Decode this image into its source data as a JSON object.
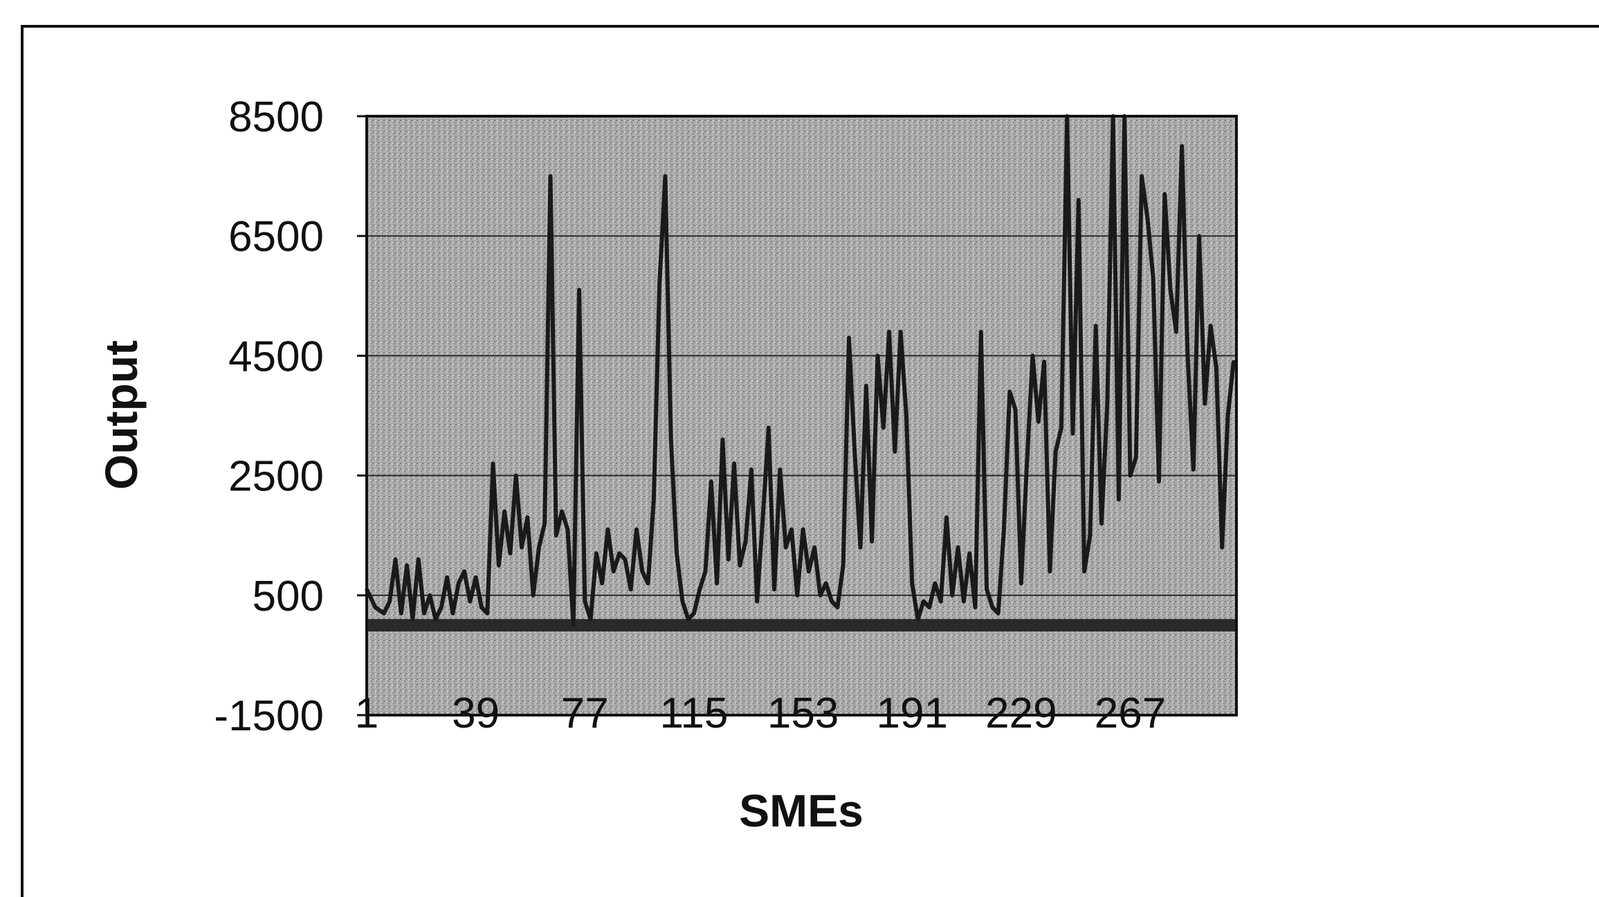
{
  "chart_data": {
    "type": "line",
    "title": "",
    "xlabel": "SMEs",
    "ylabel": "Output",
    "ylim": [
      -1500,
      8500
    ],
    "xlim": [
      1,
      304
    ],
    "y_ticks": [
      "-1500",
      "500",
      "2500",
      "4500",
      "6500",
      "8500"
    ],
    "x_ticks": [
      "1",
      "39",
      "77",
      "115",
      "153",
      "191",
      "229",
      "267"
    ],
    "grid": true,
    "legend": "none",
    "colors": {
      "plot_background": "#a8a8a8",
      "line": "#1a1a1a",
      "grid": "#2a2a2a",
      "frame": "#111111"
    },
    "series": [
      {
        "points": [
          [
            1,
            600
          ],
          [
            4,
            300
          ],
          [
            7,
            200
          ],
          [
            9,
            400
          ],
          [
            11,
            1100
          ],
          [
            13,
            200
          ],
          [
            15,
            1000
          ],
          [
            17,
            100
          ],
          [
            19,
            1100
          ],
          [
            21,
            200
          ],
          [
            23,
            500
          ],
          [
            25,
            100
          ],
          [
            27,
            300
          ],
          [
            29,
            800
          ],
          [
            31,
            200
          ],
          [
            33,
            700
          ],
          [
            35,
            900
          ],
          [
            37,
            400
          ],
          [
            39,
            800
          ],
          [
            41,
            300
          ],
          [
            43,
            200
          ],
          [
            45,
            2700
          ],
          [
            47,
            1000
          ],
          [
            49,
            1900
          ],
          [
            51,
            1200
          ],
          [
            53,
            2500
          ],
          [
            55,
            1300
          ],
          [
            57,
            1800
          ],
          [
            59,
            500
          ],
          [
            61,
            1300
          ],
          [
            63,
            1700
          ],
          [
            65,
            7500
          ],
          [
            67,
            1500
          ],
          [
            69,
            1900
          ],
          [
            71,
            1600
          ],
          [
            73,
            0
          ],
          [
            75,
            5600
          ],
          [
            77,
            400
          ],
          [
            79,
            100
          ],
          [
            81,
            1200
          ],
          [
            83,
            700
          ],
          [
            85,
            1600
          ],
          [
            87,
            900
          ],
          [
            89,
            1200
          ],
          [
            91,
            1100
          ],
          [
            93,
            600
          ],
          [
            95,
            1600
          ],
          [
            97,
            900
          ],
          [
            99,
            700
          ],
          [
            101,
            2100
          ],
          [
            103,
            5700
          ],
          [
            105,
            7500
          ],
          [
            107,
            3100
          ],
          [
            109,
            1200
          ],
          [
            111,
            400
          ],
          [
            113,
            100
          ],
          [
            115,
            200
          ],
          [
            117,
            600
          ],
          [
            119,
            900
          ],
          [
            121,
            2400
          ],
          [
            123,
            700
          ],
          [
            125,
            3100
          ],
          [
            127,
            1100
          ],
          [
            129,
            2700
          ],
          [
            131,
            1000
          ],
          [
            133,
            1400
          ],
          [
            135,
            2600
          ],
          [
            137,
            400
          ],
          [
            139,
            1800
          ],
          [
            141,
            3300
          ],
          [
            143,
            600
          ],
          [
            145,
            2600
          ],
          [
            147,
            1300
          ],
          [
            149,
            1600
          ],
          [
            151,
            500
          ],
          [
            153,
            1600
          ],
          [
            155,
            900
          ],
          [
            157,
            1300
          ],
          [
            159,
            500
          ],
          [
            161,
            700
          ],
          [
            163,
            400
          ],
          [
            165,
            300
          ],
          [
            167,
            1000
          ],
          [
            169,
            4800
          ],
          [
            171,
            2900
          ],
          [
            173,
            1300
          ],
          [
            175,
            4000
          ],
          [
            177,
            1400
          ],
          [
            179,
            4500
          ],
          [
            181,
            3300
          ],
          [
            183,
            4900
          ],
          [
            185,
            2900
          ],
          [
            187,
            4900
          ],
          [
            189,
            3500
          ],
          [
            191,
            700
          ],
          [
            193,
            100
          ],
          [
            195,
            400
          ],
          [
            197,
            300
          ],
          [
            199,
            700
          ],
          [
            201,
            400
          ],
          [
            203,
            1800
          ],
          [
            205,
            500
          ],
          [
            207,
            1300
          ],
          [
            209,
            400
          ],
          [
            211,
            1200
          ],
          [
            213,
            300
          ],
          [
            215,
            4900
          ],
          [
            217,
            600
          ],
          [
            219,
            300
          ],
          [
            221,
            200
          ],
          [
            223,
            1600
          ],
          [
            225,
            3900
          ],
          [
            227,
            3600
          ],
          [
            229,
            700
          ],
          [
            231,
            2700
          ],
          [
            233,
            4500
          ],
          [
            235,
            3400
          ],
          [
            237,
            4400
          ],
          [
            239,
            900
          ],
          [
            241,
            2900
          ],
          [
            243,
            3300
          ],
          [
            245,
            8500
          ],
          [
            247,
            3200
          ],
          [
            249,
            7100
          ],
          [
            251,
            900
          ],
          [
            253,
            1500
          ],
          [
            255,
            5000
          ],
          [
            257,
            1700
          ],
          [
            259,
            3700
          ],
          [
            261,
            8500
          ],
          [
            263,
            2100
          ],
          [
            265,
            8500
          ],
          [
            267,
            2500
          ],
          [
            269,
            2800
          ],
          [
            271,
            7500
          ],
          [
            273,
            6800
          ],
          [
            275,
            5800
          ],
          [
            277,
            2400
          ],
          [
            279,
            7200
          ],
          [
            281,
            5600
          ],
          [
            283,
            4900
          ],
          [
            285,
            8000
          ],
          [
            287,
            4500
          ],
          [
            289,
            2600
          ],
          [
            291,
            6500
          ],
          [
            293,
            3700
          ],
          [
            295,
            5000
          ],
          [
            297,
            4300
          ],
          [
            299,
            1300
          ],
          [
            301,
            3500
          ],
          [
            303,
            4400
          ]
        ]
      }
    ]
  }
}
